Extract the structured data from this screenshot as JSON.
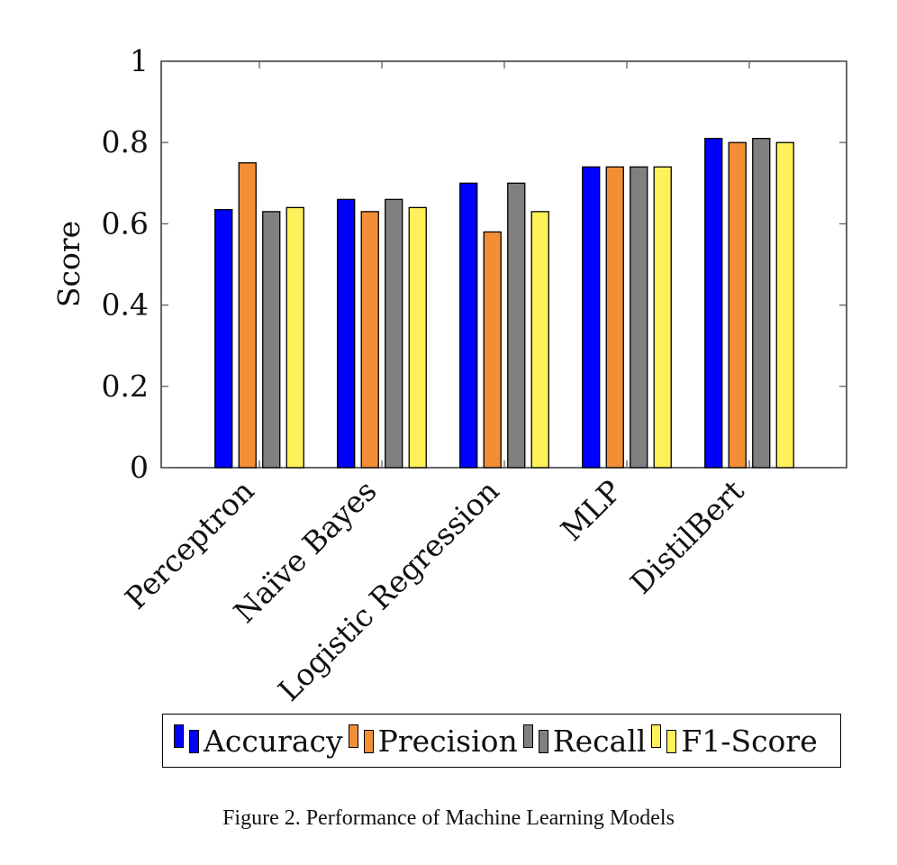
{
  "chart_data": {
    "type": "bar",
    "categories": [
      "Perceptron",
      "Naïve Bayes",
      "Logistic Regression",
      "MLP",
      "DistilBert"
    ],
    "series": [
      {
        "name": "Accuracy",
        "color": "#0000ff",
        "values": [
          0.635,
          0.66,
          0.7,
          0.74,
          0.81
        ]
      },
      {
        "name": "Precision",
        "color": "#f28e36",
        "values": [
          0.75,
          0.63,
          0.58,
          0.74,
          0.8
        ]
      },
      {
        "name": "Recall",
        "color": "#808080",
        "values": [
          0.63,
          0.66,
          0.7,
          0.74,
          0.81
        ]
      },
      {
        "name": "F1-Score",
        "color": "#fff15a",
        "values": [
          0.64,
          0.64,
          0.63,
          0.74,
          0.8
        ]
      }
    ],
    "ylabel": "Score",
    "xlabel": "",
    "ylim": [
      0,
      1
    ],
    "yticks": [
      0,
      0.2,
      0.4,
      0.6,
      0.8,
      1
    ],
    "ytick_labels": [
      "0",
      "0.2",
      "0.4",
      "0.6",
      "0.8",
      "1"
    ],
    "grid": false,
    "legend_position": "bottom"
  },
  "caption": "Figure 2. Performance of Machine Learning Models"
}
